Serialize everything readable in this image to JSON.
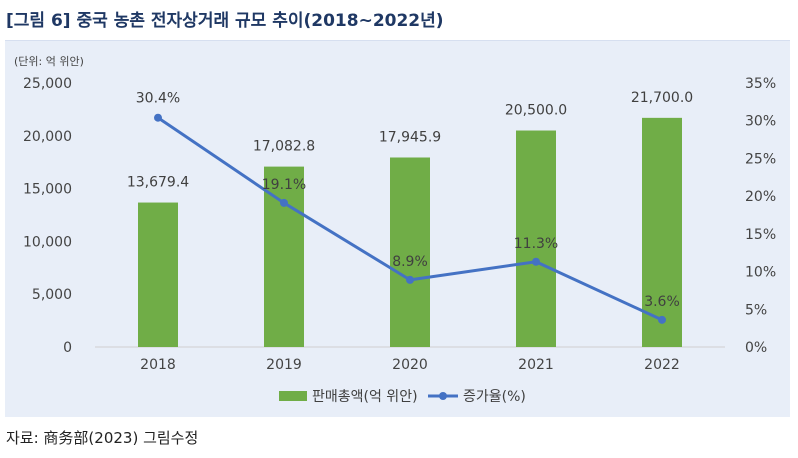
{
  "figure": {
    "label": "[그림 6]",
    "title": "중국 농촌 전자상거래 규모 추이(2018~2022년)",
    "unit_note": "(단위: 억 위안)",
    "source": "자료: 商务部(2023) 그림수정"
  },
  "colors": {
    "bar": "#70ad47",
    "line": "#4472c4",
    "title": "#1f3864",
    "panel": "#e8eef8"
  },
  "chart_data": {
    "type": "bar",
    "categories": [
      "2018",
      "2019",
      "2020",
      "2021",
      "2022"
    ],
    "series": [
      {
        "name": "판매총액(억 위안)",
        "type": "bar",
        "axis": "left",
        "values": [
          13679.4,
          17082.8,
          17945.9,
          20500.0,
          21700.0
        ],
        "labels": [
          "13,679.4",
          "17,082.8",
          "17,945.9",
          "20,500.0",
          "21,700.0"
        ]
      },
      {
        "name": "증가율(%)",
        "type": "line",
        "axis": "right",
        "values": [
          30.4,
          19.1,
          8.9,
          11.3,
          3.6
        ],
        "labels": [
          "30.4%",
          "19.1%",
          "8.9%",
          "11.3%",
          "3.6%"
        ]
      }
    ],
    "left_axis": {
      "ylim": [
        0,
        25000
      ],
      "ticks": [
        0,
        5000,
        10000,
        15000,
        20000,
        25000
      ],
      "tick_labels": [
        "0",
        "5,000",
        "10,000",
        "15,000",
        "20,000",
        "25,000"
      ]
    },
    "right_axis": {
      "ylim": [
        0,
        35
      ],
      "ticks": [
        0,
        5,
        10,
        15,
        20,
        25,
        30,
        35
      ],
      "tick_labels": [
        "0%",
        "5%",
        "10%",
        "15%",
        "20%",
        "25%",
        "30%",
        "35%"
      ]
    },
    "legend_placement": "bottom-center",
    "grid": false
  }
}
